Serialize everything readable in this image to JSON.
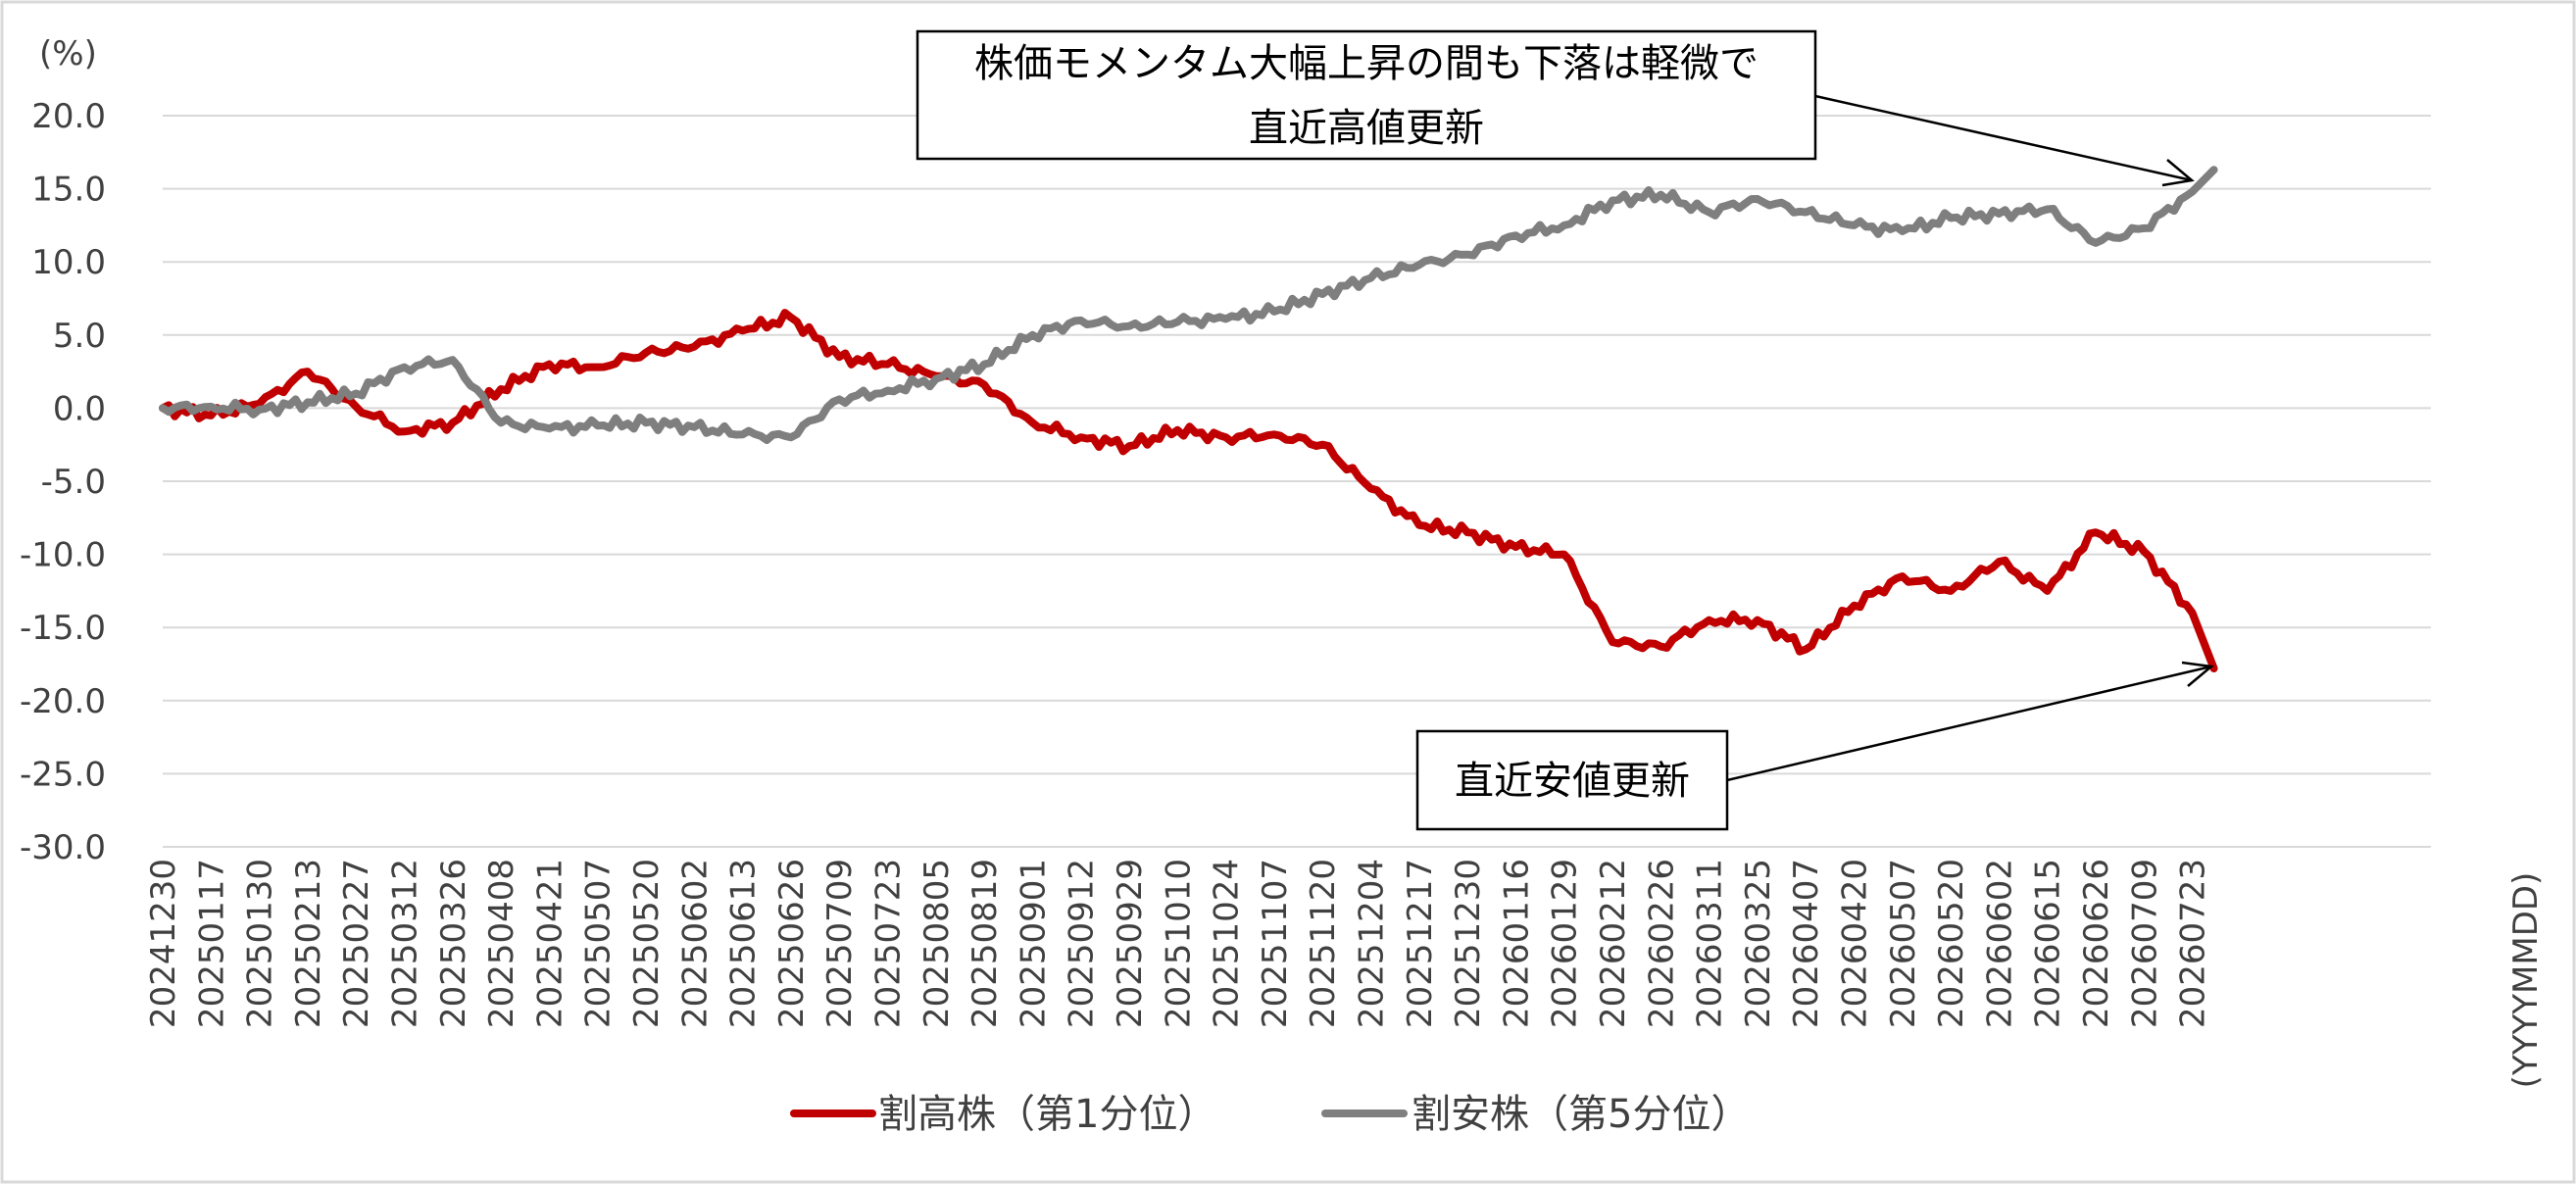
{
  "chart_data": {
    "type": "line",
    "y_unit": "(%)",
    "x_unit": "(YYYYMMDD)",
    "ylim": [
      -30,
      20
    ],
    "y_ticks": [
      "20.0",
      "15.0",
      "10.0",
      "5.0",
      "0.0",
      "-5.0",
      "-10.0",
      "-15.0",
      "-20.0",
      "-25.0",
      "-30.0"
    ],
    "y_tick_values": [
      20,
      15,
      10,
      5,
      0,
      -5,
      -10,
      -15,
      -20,
      -25,
      -30
    ],
    "x_ticks": [
      "20241230",
      "20250117",
      "20250130",
      "20250213",
      "20250227",
      "20250312",
      "20250326",
      "20250408",
      "20250421",
      "20250507",
      "20250520",
      "20250602",
      "20250613",
      "20250626",
      "20250709",
      "20250723",
      "20250805",
      "20250819",
      "20250901",
      "20250912",
      "20250929",
      "20251010",
      "20251024",
      "20251107",
      "20251120",
      "20251204",
      "20251217",
      "20251230",
      "20260116",
      "20260129",
      "20260212",
      "20260226",
      "20260311",
      "20260325",
      "20260407",
      "20260420",
      "20260507",
      "20260520",
      "20260602",
      "20260615",
      "20260626",
      "20260709",
      "20260723"
    ],
    "grid": true,
    "legend_position": "bottom",
    "series": [
      {
        "name": "割高株（第1分位）",
        "color": "#c00000",
        "x": [
          "20241230",
          "20250117",
          "20250130",
          "20250213",
          "20250227",
          "20250312",
          "20250326",
          "20250408",
          "20250421",
          "20250507",
          "20250520",
          "20250602",
          "20250613",
          "20250626",
          "20250709",
          "20250723",
          "20250805",
          "20250819",
          "20250901",
          "20250912",
          "20250929",
          "20251010",
          "20251024",
          "20251107",
          "20251120",
          "20251204",
          "20251217",
          "20251230",
          "20260116",
          "20260129",
          "20260212",
          "20260226",
          "20260311",
          "20260325",
          "20260407",
          "20260420",
          "20260507",
          "20260520",
          "20260602",
          "20260615",
          "20260626",
          "20260709",
          "20260723"
        ],
        "values": [
          0.0,
          -0.5,
          0.3,
          2.5,
          0.1,
          -1.6,
          -1.0,
          1.3,
          3.0,
          2.8,
          3.8,
          4.2,
          5.3,
          6.2,
          3.5,
          3.0,
          2.2,
          1.6,
          -1.0,
          -2.0,
          -2.6,
          -1.5,
          -2.0,
          -1.8,
          -2.5,
          -5.5,
          -8.0,
          -8.5,
          -9.5,
          -10.0,
          -16.0,
          -16.3,
          -14.5,
          -14.5,
          -16.5,
          -13.5,
          -11.5,
          -12.5,
          -10.5,
          -12.5,
          -8.5,
          -9.8,
          -14.0
        ]
      },
      {
        "name": "割安株（第5分位）",
        "color": "#7f7f7f",
        "x": [
          "20241230",
          "20250117",
          "20250130",
          "20250213",
          "20250227",
          "20250312",
          "20250326",
          "20250408",
          "20250421",
          "20250507",
          "20250520",
          "20250602",
          "20250613",
          "20250626",
          "20250709",
          "20250723",
          "20250805",
          "20250819",
          "20250901",
          "20250912",
          "20250929",
          "20251010",
          "20251024",
          "20251107",
          "20251120",
          "20251204",
          "20251217",
          "20251230",
          "20260116",
          "20260129",
          "20260212",
          "20260226",
          "20260311",
          "20260325",
          "20260407",
          "20260420",
          "20260507",
          "20260520",
          "20260602",
          "20260615",
          "20260626",
          "20260709",
          "20260723"
        ],
        "values": [
          0.0,
          0.1,
          -0.1,
          0.4,
          1.0,
          2.8,
          3.3,
          -1.0,
          -1.4,
          -1.2,
          -1.0,
          -1.3,
          -1.8,
          -2.0,
          0.6,
          1.2,
          2.0,
          3.0,
          5.0,
          6.0,
          5.6,
          5.9,
          6.1,
          6.6,
          7.8,
          8.9,
          9.8,
          10.5,
          11.8,
          12.5,
          14.2,
          14.6,
          13.4,
          14.3,
          13.4,
          12.5,
          12.1,
          13.0,
          13.3,
          13.6,
          11.3,
          12.3,
          14.8
        ]
      }
    ]
  },
  "callouts": {
    "high_line1": "株価モメンタム大幅上昇の間も下落は軽微で",
    "high_line2": "直近高値更新",
    "low": "直近安値更新"
  },
  "legend": {
    "item1": "割高株（第1分位）",
    "item2": "割安株（第5分位）"
  }
}
